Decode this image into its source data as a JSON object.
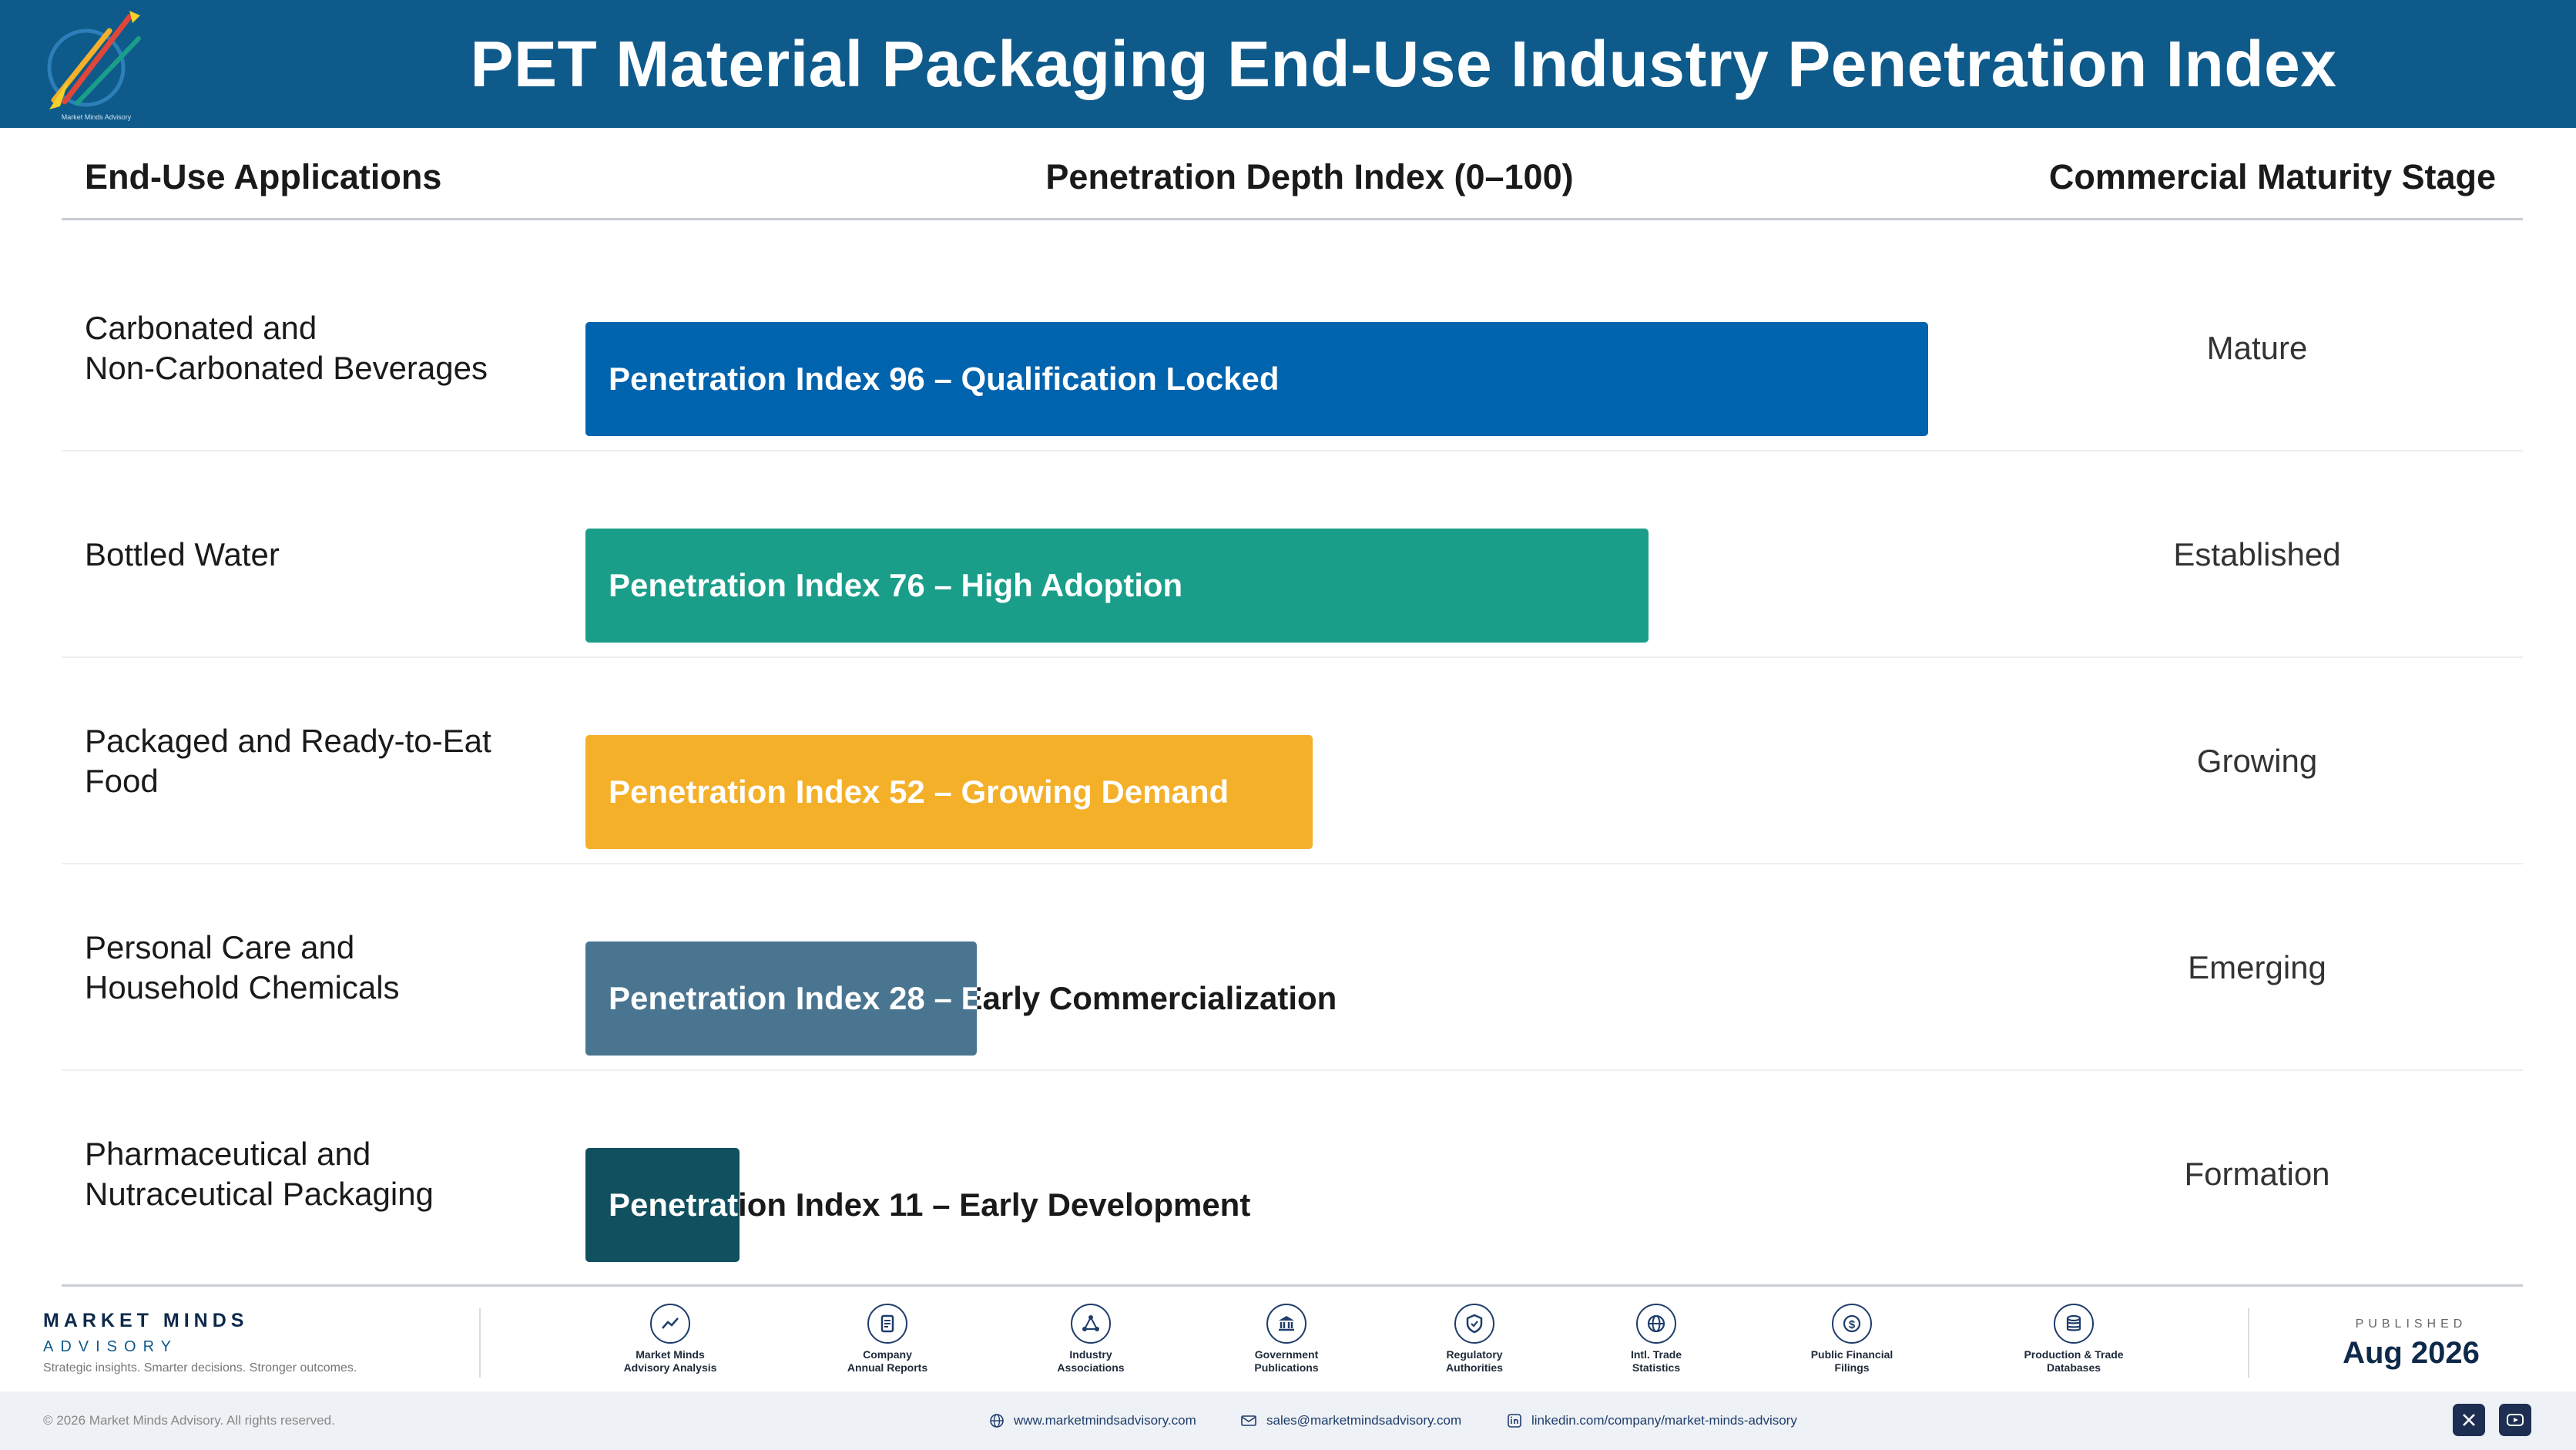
{
  "header": {
    "title": "PET Material Packaging End-Use Industry Penetration Index"
  },
  "columns": {
    "applications": "End-Use Applications",
    "index": "Penetration Depth Index (0–100)",
    "stage": "Commercial Maturity Stage"
  },
  "rows": [
    {
      "application": "Carbonated and\nNon-Carbonated Beverages",
      "bar_label": "Penetration Index 96 – Qualification Locked",
      "stage": "Mature"
    },
    {
      "application": "Bottled Water",
      "bar_label": "Penetration Index 76 – High Adoption",
      "stage": "Established"
    },
    {
      "application": "Packaged and Ready-to-Eat\nFood",
      "bar_label": "Penetration Index 52 – Growing Demand",
      "stage": "Growing"
    },
    {
      "application": "Personal Care and\nHousehold Chemicals",
      "bar_label": "Penetration Index 28 – Early Commercialization",
      "stage": "Emerging"
    },
    {
      "application": "Pharmaceutical and\nNutraceutical Packaging",
      "bar_label": "Penetration Index 11 – Early Development",
      "stage": "Formation"
    }
  ],
  "chart_data": {
    "type": "bar",
    "orientation": "horizontal",
    "categories": [
      "Carbonated and Non-Carbonated Beverages",
      "Bottled Water",
      "Packaged and Ready-to-Eat Food",
      "Personal Care and Household Chemicals",
      "Pharmaceutical and Nutraceutical Packaging"
    ],
    "values": [
      96,
      76,
      52,
      28,
      11
    ],
    "xlim": [
      0,
      100
    ],
    "title": "PET Material Packaging End-Use Industry Penetration Index",
    "xlabel": "Penetration Depth Index (0–100)",
    "ylabel": "End-Use Applications",
    "colors": [
      "#0063ad",
      "#1a9e8a",
      "#f5b02a",
      "#4a7590",
      "#10505f"
    ]
  },
  "footer": {
    "brand_name": "MARKET MINDS",
    "brand_sub": "ADVISORY",
    "tagline": "Strategic insights. Smarter decisions. Stronger outcomes.",
    "sources": [
      {
        "label": "Market Minds\nAdvisory Analysis",
        "icon": "trend-icon"
      },
      {
        "label": "Company\nAnnual Reports",
        "icon": "document-icon"
      },
      {
        "label": "Industry\nAssociations",
        "icon": "network-icon"
      },
      {
        "label": "Government\nPublications",
        "icon": "government-icon"
      },
      {
        "label": "Regulatory\nAuthorities",
        "icon": "shield-icon"
      },
      {
        "label": "Intl. Trade\nStatistics",
        "icon": "globe-icon"
      },
      {
        "label": "Public Financial\nFilings",
        "icon": "dollar-icon"
      },
      {
        "label": "Production & Trade\nDatabases",
        "icon": "database-icon"
      }
    ],
    "published_label": "PUBLISHED",
    "published_date": "Aug 2026",
    "copyright": "© 2026 Market Minds Advisory. All rights reserved.",
    "website": "www.marketmindsadvisory.com",
    "email": "sales@marketmindsadvisory.com",
    "linkedin": "linkedin.com/company/market-minds-advisory"
  }
}
